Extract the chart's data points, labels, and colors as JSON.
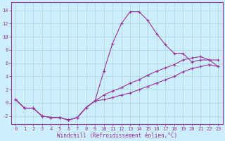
{
  "bg_color": "#cceeff",
  "line_color": "#993399",
  "grid_color": "#aadddd",
  "xlabel": "Windchill (Refroidissement éolien,°C)",
  "xlim": [
    -0.5,
    23.5
  ],
  "ylim": [
    -3.2,
    15.2
  ],
  "yticks": [
    -2,
    0,
    2,
    4,
    6,
    8,
    10,
    12,
    14
  ],
  "xticks": [
    0,
    1,
    2,
    3,
    4,
    5,
    6,
    7,
    8,
    9,
    10,
    11,
    12,
    13,
    14,
    15,
    16,
    17,
    18,
    19,
    20,
    21,
    22,
    23
  ],
  "line1_x": [
    0,
    1,
    2,
    3,
    4,
    5,
    6,
    7,
    8,
    9,
    10,
    11,
    12,
    13,
    14,
    15,
    16,
    17,
    18,
    19,
    20,
    21,
    22,
    23
  ],
  "line1_y": [
    0.5,
    -0.8,
    -0.8,
    -2.0,
    -2.2,
    -2.2,
    -2.6,
    -2.2,
    -0.7,
    0.3,
    4.8,
    9.0,
    12.0,
    13.8,
    13.8,
    12.5,
    10.5,
    8.8,
    7.5,
    7.5,
    6.2,
    6.5,
    6.5,
    6.5
  ],
  "line2_x": [
    0,
    1,
    2,
    3,
    4,
    5,
    6,
    7,
    8,
    9,
    10,
    11,
    12,
    13,
    14,
    15,
    16,
    17,
    18,
    19,
    20,
    21,
    22,
    23
  ],
  "line2_y": [
    0.5,
    -0.8,
    -0.8,
    -2.0,
    -2.2,
    -2.2,
    -2.6,
    -2.2,
    -0.7,
    0.3,
    1.2,
    1.8,
    2.3,
    3.0,
    3.5,
    4.2,
    4.8,
    5.3,
    5.8,
    6.5,
    6.8,
    7.0,
    6.5,
    5.5
  ],
  "line3_x": [
    0,
    1,
    2,
    3,
    4,
    5,
    6,
    7,
    8,
    9,
    10,
    11,
    12,
    13,
    14,
    15,
    16,
    17,
    18,
    19,
    20,
    21,
    22,
    23
  ],
  "line3_y": [
    0.5,
    -0.8,
    -0.8,
    -2.0,
    -2.2,
    -2.2,
    -2.6,
    -2.2,
    -0.7,
    0.3,
    0.5,
    0.8,
    1.2,
    1.5,
    2.0,
    2.5,
    3.0,
    3.5,
    4.0,
    4.7,
    5.2,
    5.5,
    5.8,
    5.5
  ],
  "spine_color": "#993399",
  "tick_fontsize": 5.0,
  "xlabel_fontsize": 5.5
}
